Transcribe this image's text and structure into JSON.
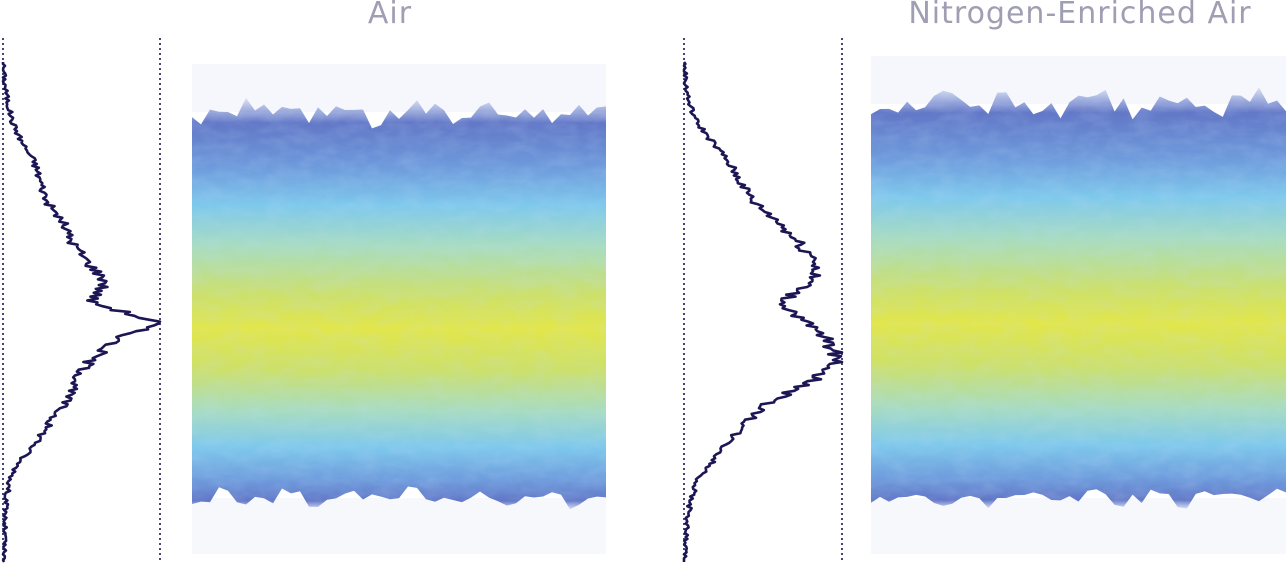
{
  "panels": [
    {
      "title": "Air"
    },
    {
      "title": "Nitrogen-Enriched Air"
    }
  ],
  "chart_data": [
    {
      "type": "line",
      "title": "Air",
      "xlabel": "",
      "ylabel": "",
      "grid": false,
      "profile_color": "#1c1654",
      "profile": {
        "y": [
          0.0,
          0.04,
          0.08,
          0.12,
          0.16,
          0.2,
          0.24,
          0.28,
          0.32,
          0.36,
          0.4,
          0.44,
          0.48,
          0.52,
          0.56,
          0.6,
          0.64,
          0.68,
          0.72,
          0.76,
          0.8,
          0.84,
          0.88,
          0.92,
          0.96,
          1.0
        ],
        "x": [
          0.0,
          0.01,
          0.03,
          0.06,
          0.12,
          0.2,
          0.24,
          0.28,
          0.38,
          0.44,
          0.54,
          0.66,
          0.56,
          0.98,
          0.7,
          0.55,
          0.46,
          0.4,
          0.3,
          0.22,
          0.1,
          0.04,
          0.02,
          0.01,
          0.01,
          0.0
        ]
      },
      "heatmap_colors": [
        "#5a70c4",
        "#6e9bdc",
        "#7ec8ec",
        "#a8dcc0",
        "#cde06a",
        "#e2e64a"
      ]
    },
    {
      "type": "line",
      "title": "Nitrogen-Enriched Air",
      "xlabel": "",
      "ylabel": "",
      "grid": false,
      "profile_color": "#1c1654",
      "profile": {
        "y": [
          0.0,
          0.04,
          0.08,
          0.12,
          0.16,
          0.2,
          0.24,
          0.28,
          0.32,
          0.36,
          0.4,
          0.44,
          0.48,
          0.52,
          0.56,
          0.6,
          0.64,
          0.68,
          0.72,
          0.76,
          0.8,
          0.84,
          0.88,
          0.92,
          0.96,
          1.0
        ],
        "x": [
          0.0,
          0.01,
          0.03,
          0.08,
          0.18,
          0.28,
          0.36,
          0.44,
          0.6,
          0.72,
          0.85,
          0.8,
          0.62,
          0.76,
          0.92,
          0.98,
          0.8,
          0.54,
          0.4,
          0.28,
          0.18,
          0.08,
          0.04,
          0.02,
          0.01,
          0.0
        ]
      },
      "heatmap_colors": [
        "#5a70c4",
        "#6e9bdc",
        "#7ec8ec",
        "#a8dcc0",
        "#cde06a",
        "#e2e64a"
      ]
    }
  ]
}
